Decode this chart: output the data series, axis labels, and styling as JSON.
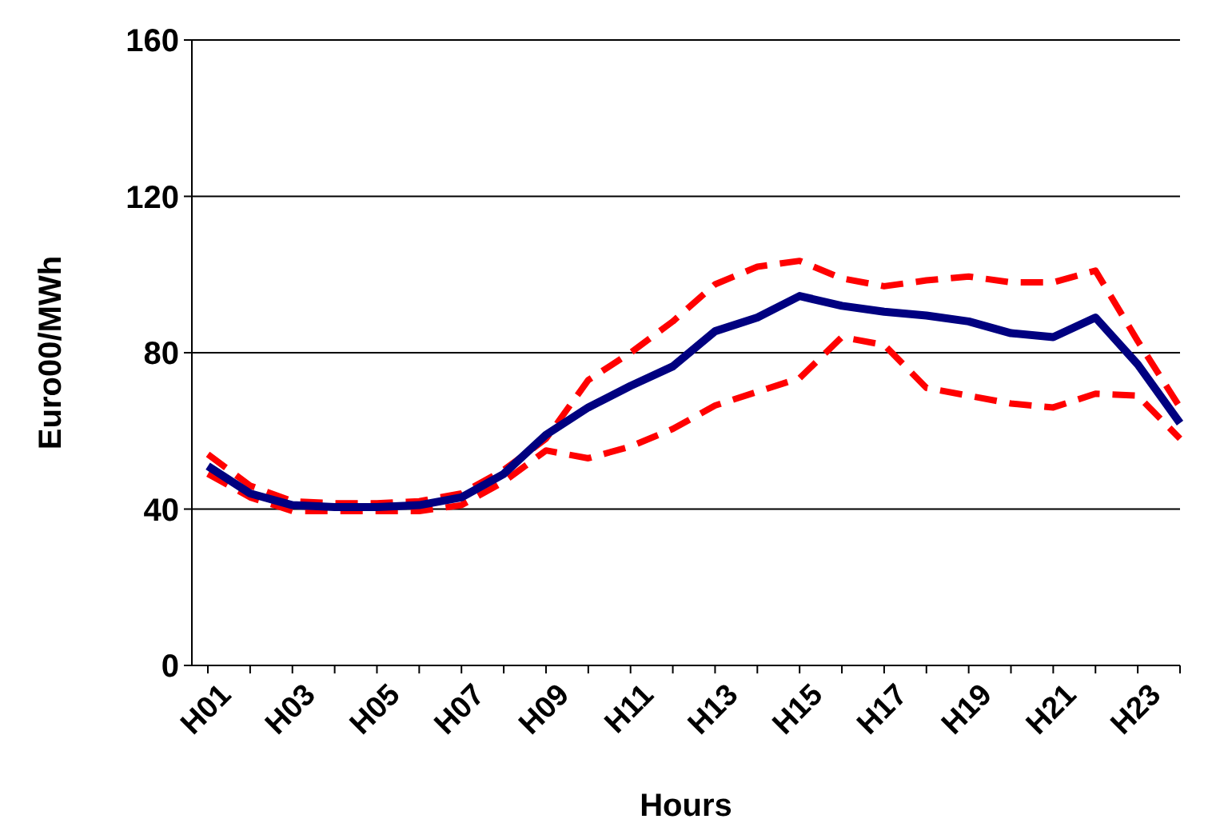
{
  "chart_data": {
    "type": "line",
    "xlabel": "Hours",
    "ylabel": "Euro00/MWh",
    "categories": [
      "H01",
      null,
      "H03",
      null,
      "H05",
      null,
      "H07",
      null,
      "H09",
      null,
      "H11",
      null,
      "H13",
      null,
      "H15",
      null,
      "H17",
      null,
      "H19",
      null,
      "H21",
      null,
      "H23",
      null
    ],
    "series": [
      {
        "color": "#ff0000",
        "line_style": "dashed",
        "values": [
          54,
          46,
          42,
          41.5,
          41.5,
          42,
          44,
          50,
          58,
          73,
          80,
          88,
          97.5,
          102,
          103.5,
          99,
          97,
          98.5,
          99.5,
          98,
          98,
          101,
          83,
          66
        ]
      },
      {
        "color": "#ff0000",
        "line_style": "dashed",
        "values": [
          49,
          43,
          39.5,
          39.5,
          39.5,
          39.5,
          41,
          47,
          55,
          53,
          56,
          60.5,
          66.5,
          70,
          73.5,
          84,
          82,
          71,
          69,
          67,
          66,
          69.5,
          69,
          58
        ]
      },
      {
        "color": "#000080",
        "line_style": "solid",
        "values": [
          51,
          44,
          41,
          40.5,
          40.5,
          41,
          43,
          49,
          59,
          66,
          71.5,
          76.5,
          85.5,
          89,
          94.5,
          92,
          90.5,
          89.5,
          88,
          85,
          84,
          89,
          77,
          62
        ]
      }
    ],
    "ylim": [
      0,
      160
    ],
    "yticks": [
      0,
      40,
      80,
      120,
      160
    ],
    "grid": "y",
    "marker": "none"
  }
}
